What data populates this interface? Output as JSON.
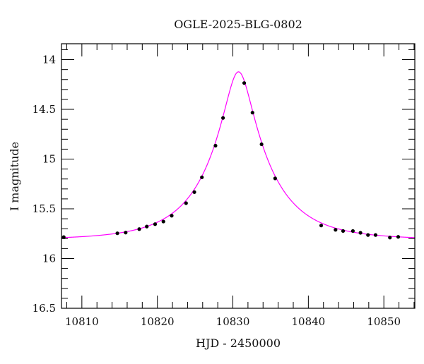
{
  "chart_data": {
    "type": "scatter",
    "title": "OGLE-2025-BLG-0802",
    "xlabel": "HJD - 2450000",
    "ylabel": "I magnitude",
    "xlim": [
      10807.3,
      10854.1
    ],
    "ylim": [
      16.5,
      13.84
    ],
    "y_inverted": true,
    "grid": false,
    "x_ticks": [
      10810,
      10820,
      10830,
      10840,
      10850
    ],
    "x_tick_labels": [
      "10810",
      "10820",
      "10830",
      "10840",
      "10850"
    ],
    "y_ticks": [
      14,
      14.5,
      15,
      15.5,
      16,
      16.5
    ],
    "y_tick_labels": [
      "14",
      "14.5",
      "15",
      "15.5",
      "16",
      "16.5"
    ],
    "series": [
      {
        "kind": "points",
        "color": "#000000",
        "x": [
          10807.6,
          10814.7,
          10815.8,
          10817.6,
          10818.6,
          10819.7,
          10820.8,
          10821.9,
          10823.8,
          10824.9,
          10825.9,
          10827.7,
          10828.7,
          10831.5,
          10832.6,
          10833.8,
          10835.6,
          10841.7,
          10843.6,
          10844.6,
          10845.9,
          10846.9,
          10847.9,
          10848.9,
          10850.8,
          10851.9
        ],
        "y": [
          15.784,
          15.746,
          15.739,
          15.704,
          15.678,
          15.654,
          15.628,
          15.569,
          15.443,
          15.332,
          15.183,
          14.865,
          14.586,
          14.235,
          14.533,
          14.851,
          15.194,
          15.668,
          15.711,
          15.723,
          15.723,
          15.741,
          15.763,
          15.763,
          15.789,
          15.782
        ]
      },
      {
        "kind": "model-curve",
        "color": "#ff00ff",
        "model": {
          "t0": 10830.75,
          "u0": 0.215,
          "tE": 8.1,
          "baseline_mag": 15.81
        }
      }
    ]
  }
}
